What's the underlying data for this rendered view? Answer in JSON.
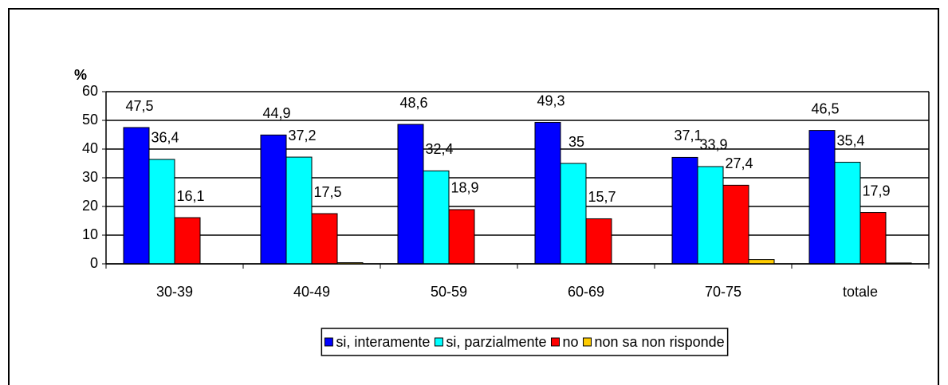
{
  "chart_data": {
    "type": "bar",
    "y_label": "%",
    "categories": [
      "30-39",
      "40-49",
      "50-59",
      "60-69",
      "70-75",
      "totale"
    ],
    "series": [
      {
        "name": "si, interamente",
        "color": "#0000ff",
        "values": [
          47.5,
          44.9,
          48.6,
          49.3,
          37.1,
          46.5
        ],
        "value_labels": [
          "47,5",
          "44,9",
          "48,6",
          "49,3",
          "37,1",
          "46,5"
        ]
      },
      {
        "name": "si, parzialmente",
        "color": "#00ffff",
        "values": [
          36.4,
          37.2,
          32.4,
          35,
          33.9,
          35.4
        ],
        "value_labels": [
          "36,4",
          "37,2",
          "32,4",
          "35",
          "33,9",
          "35,4"
        ]
      },
      {
        "name": "no",
        "color": "#ff0000",
        "values": [
          16.1,
          17.5,
          18.9,
          15.7,
          27.4,
          17.9
        ],
        "value_labels": [
          "16,1",
          "17,5",
          "18,9",
          "15,7",
          "27,4",
          "17,9"
        ]
      },
      {
        "name": "non sa non risponde",
        "color": "#ffcc00",
        "values": [
          0,
          0.4,
          0,
          0,
          1.5,
          0.3
        ]
      }
    ],
    "ylim": [
      0,
      60
    ],
    "yticks": [
      0,
      10,
      20,
      30,
      40,
      50,
      60
    ],
    "grid": true,
    "legend": "bottom"
  }
}
